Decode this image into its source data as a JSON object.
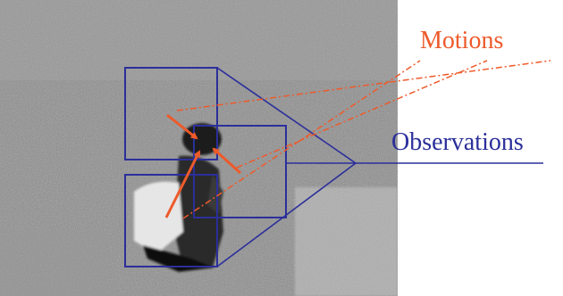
{
  "labels": {
    "motions": "Motions",
    "observations": "Observations"
  },
  "colors": {
    "motion": "#ee5a2a",
    "observation": "#2b2f9a",
    "background": "#ffffff"
  },
  "scene": {
    "image": "grayscale noisy video frame of a person on grass",
    "window_count": 3,
    "motion_arrow_count": 3
  }
}
